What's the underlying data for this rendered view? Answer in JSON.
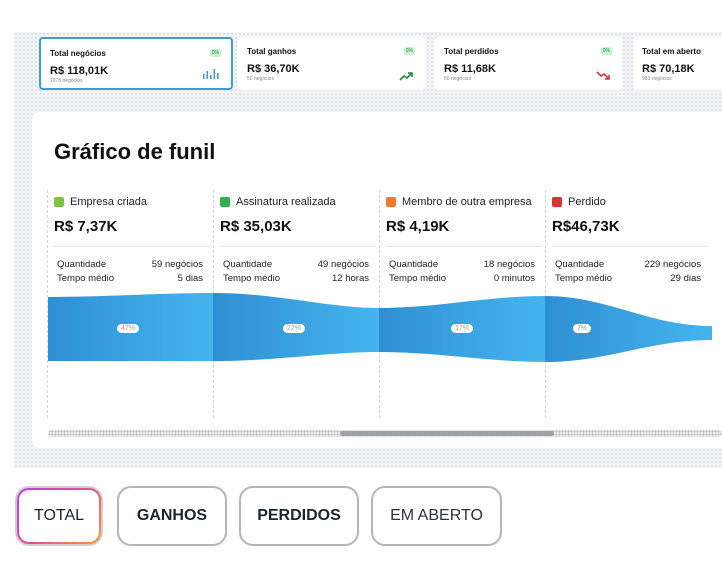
{
  "kpis": [
    {
      "title": "Total negócios",
      "badge": "0%",
      "value": "R$ 118,01K",
      "sub": "1078 negócios",
      "icon": "bar-chart-icon"
    },
    {
      "title": "Total ganhos",
      "badge": "0%",
      "value": "R$ 36,70K",
      "sub": "50 negócios",
      "icon": "trend-up-icon"
    },
    {
      "title": "Total perdidos",
      "badge": "0%",
      "value": "R$ 11,68K",
      "sub": "50 negócios",
      "icon": "trend-down-icon"
    },
    {
      "title": "Total em aberto",
      "value": "R$ 70,18K",
      "sub": "983 negócios"
    }
  ],
  "funnel": {
    "title": "Gráfico de funil",
    "stages": [
      {
        "name": "Empresa criada",
        "color": "#7cc348",
        "value": "R$ 7,37K",
        "qty_label": "Quantidade",
        "qty": "59 negócios",
        "time_label": "Tempo médio",
        "time": "5 dias",
        "pct": "47%"
      },
      {
        "name": "Assinatura realizada",
        "color": "#2fb24c",
        "value": "R$ 35,03K",
        "qty_label": "Quantidade",
        "qty": "49 negócios",
        "time_label": "Tempo médio",
        "time": "12 horas",
        "pct": "22%"
      },
      {
        "name": "Membro de outra empresa",
        "color": "#f07a2b",
        "value": "R$ 4,19K",
        "qty_label": "Quantidade",
        "qty": "18 negócios",
        "time_label": "Tempo médio",
        "time": "0 minutos",
        "pct": "17%"
      },
      {
        "name": "Perdido",
        "color": "#d9312c",
        "value": "R$46,73K",
        "qty_label": "Quantidade",
        "qty": "229 negócios",
        "time_label": "Tempo médio",
        "time": "29 dias",
        "pct": "7%"
      }
    ]
  },
  "tabs": [
    {
      "label": "TOTAL",
      "selected": true
    },
    {
      "label": "GANHOS"
    },
    {
      "label": "PERDIDOS"
    },
    {
      "label": "EM ABERTO"
    }
  ],
  "colors": {
    "accent": "#3b9bd6",
    "funnel_dark": "#2f8fd3",
    "funnel_light": "#45b5ee",
    "up": "#1f8a3a",
    "down": "#d9312c"
  }
}
